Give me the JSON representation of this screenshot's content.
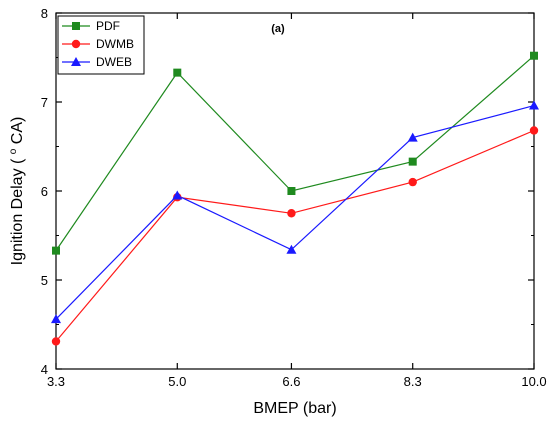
{
  "chart_data": {
    "type": "line",
    "annotation": "(a)",
    "xlabel": "BMEP (bar)",
    "ylabel": "Ignition Delay (°CA)",
    "ylabel_main": "Ignition Delay (",
    "ylabel_sup": "o",
    "ylabel_end": "CA)",
    "x": [
      3.3,
      5.0,
      6.6,
      8.3,
      10.0
    ],
    "xtick_labels": [
      "3.3",
      "5.0",
      "6.6",
      "8.3",
      "10.0"
    ],
    "xlim": [
      3.3,
      10.0
    ],
    "ylim": [
      4,
      8
    ],
    "yticks": [
      4,
      5,
      6,
      7,
      8
    ],
    "ytick_labels": [
      "4",
      "5",
      "6",
      "7",
      "8"
    ],
    "grid": false,
    "legend_position": "top-left",
    "series": [
      {
        "name": "PDF",
        "color": "#1f8a1f",
        "marker": "square",
        "values": [
          5.33,
          7.33,
          6.0,
          6.33,
          7.52
        ]
      },
      {
        "name": "DWMB",
        "color": "#ff1a1a",
        "marker": "circle",
        "values": [
          4.31,
          5.93,
          5.75,
          6.1,
          6.68
        ]
      },
      {
        "name": "DWEB",
        "color": "#1a1aff",
        "marker": "triangle",
        "values": [
          4.56,
          5.95,
          5.34,
          6.6,
          6.96
        ]
      }
    ]
  }
}
